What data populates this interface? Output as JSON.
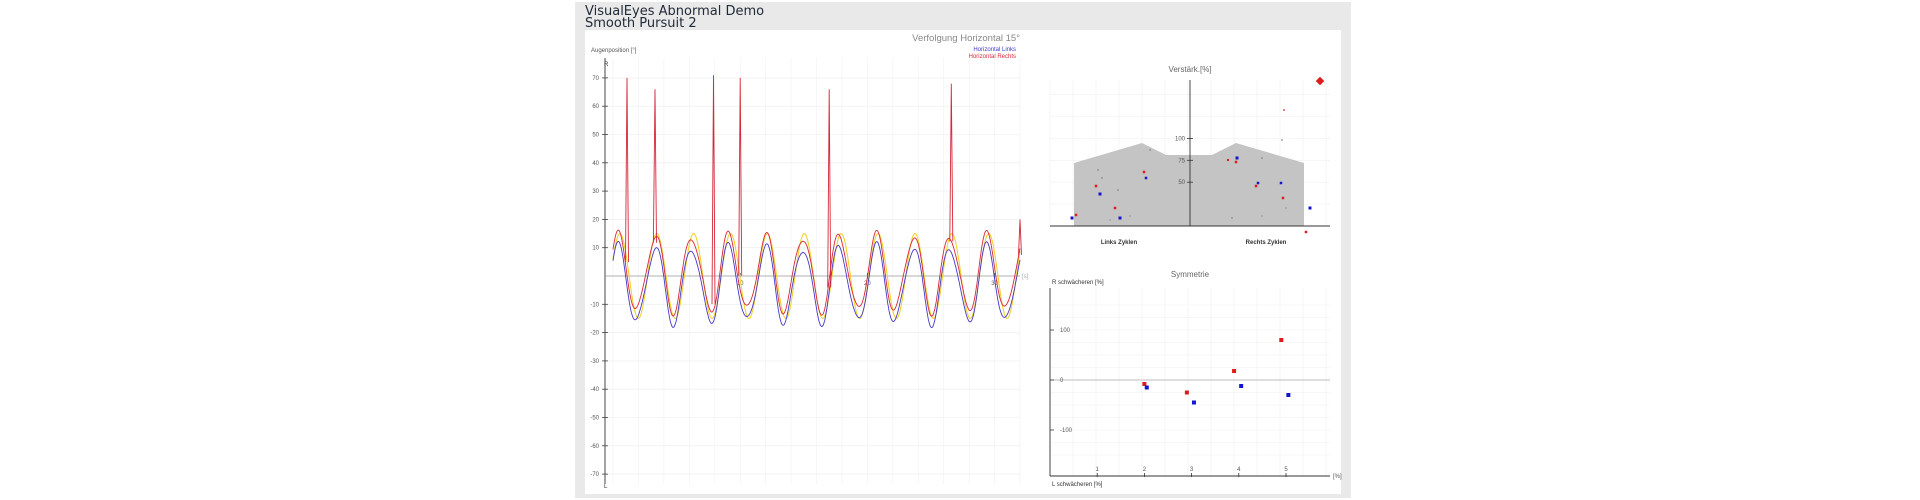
{
  "header": {
    "title": "VisualEyes Abnormal Demo",
    "subtitle": "Smooth Pursuit 2"
  },
  "colors": {
    "left": "#4338ca",
    "right": "#d62839",
    "left_marker": "#1515d0",
    "right_marker": "#e01b1b",
    "stimulus": "#f2d22e",
    "gray_band": "#c4c4c4"
  },
  "chart_data": [
    {
      "type": "line",
      "title": "Verfolgung Horizontal 15°",
      "ylabel": "Augenposition [°]",
      "y_top_label": "R",
      "y_bottom_label": "L",
      "x_end_label": "[s]",
      "ylim": [
        -75,
        75
      ],
      "xlim": [
        0,
        32
      ],
      "yticks": [
        70,
        60,
        50,
        40,
        30,
        20,
        10,
        -10,
        -20,
        -30,
        -40,
        -50,
        -60,
        -70
      ],
      "xticks": [
        10,
        20,
        30
      ],
      "grid": true,
      "legend_position": "top-right",
      "series": [
        {
          "name": "Horizontal Links",
          "color": "#4338ca"
        },
        {
          "name": "Horizontal Rechts",
          "color": "#d62839"
        },
        {
          "color": "#f2d22e"
        }
      ],
      "saccade_spikes": [
        {
          "x": 1.1,
          "y": 70
        },
        {
          "x": 3.3,
          "y": 66
        },
        {
          "x": 7.9,
          "y": 71
        },
        {
          "x": 10.0,
          "y": 70
        },
        {
          "x": 17.0,
          "y": 66
        },
        {
          "x": 26.6,
          "y": 68
        },
        {
          "x": 32.0,
          "y": 20
        }
      ]
    },
    {
      "type": "scatter",
      "title": "Verstärk.[%]",
      "categories": [
        "Links Zyklen",
        "Rechts Zyklen"
      ],
      "yticks": [
        100,
        75,
        50
      ],
      "grid": true
    },
    {
      "type": "scatter",
      "title": "Symmetrie",
      "y_top_label": "R schwächeren [%]",
      "y_bottom_label": "L schwächeren [%]",
      "x_end_label": "[%]",
      "ylim": [
        -150,
        150
      ],
      "yticks": [
        100,
        0,
        -100
      ],
      "xticks": [
        1,
        2,
        3,
        4,
        5
      ],
      "grid": true,
      "series": [
        {
          "color": "#e01b1b",
          "points": [
            [
              2.0,
              -8
            ],
            [
              2.9,
              -25
            ],
            [
              3.9,
              18
            ],
            [
              4.9,
              80
            ]
          ]
        },
        {
          "color": "#1515d0",
          "points": [
            [
              2.05,
              -15
            ],
            [
              3.05,
              -45
            ],
            [
              4.05,
              -12
            ],
            [
              5.05,
              -30
            ]
          ]
        }
      ]
    }
  ]
}
